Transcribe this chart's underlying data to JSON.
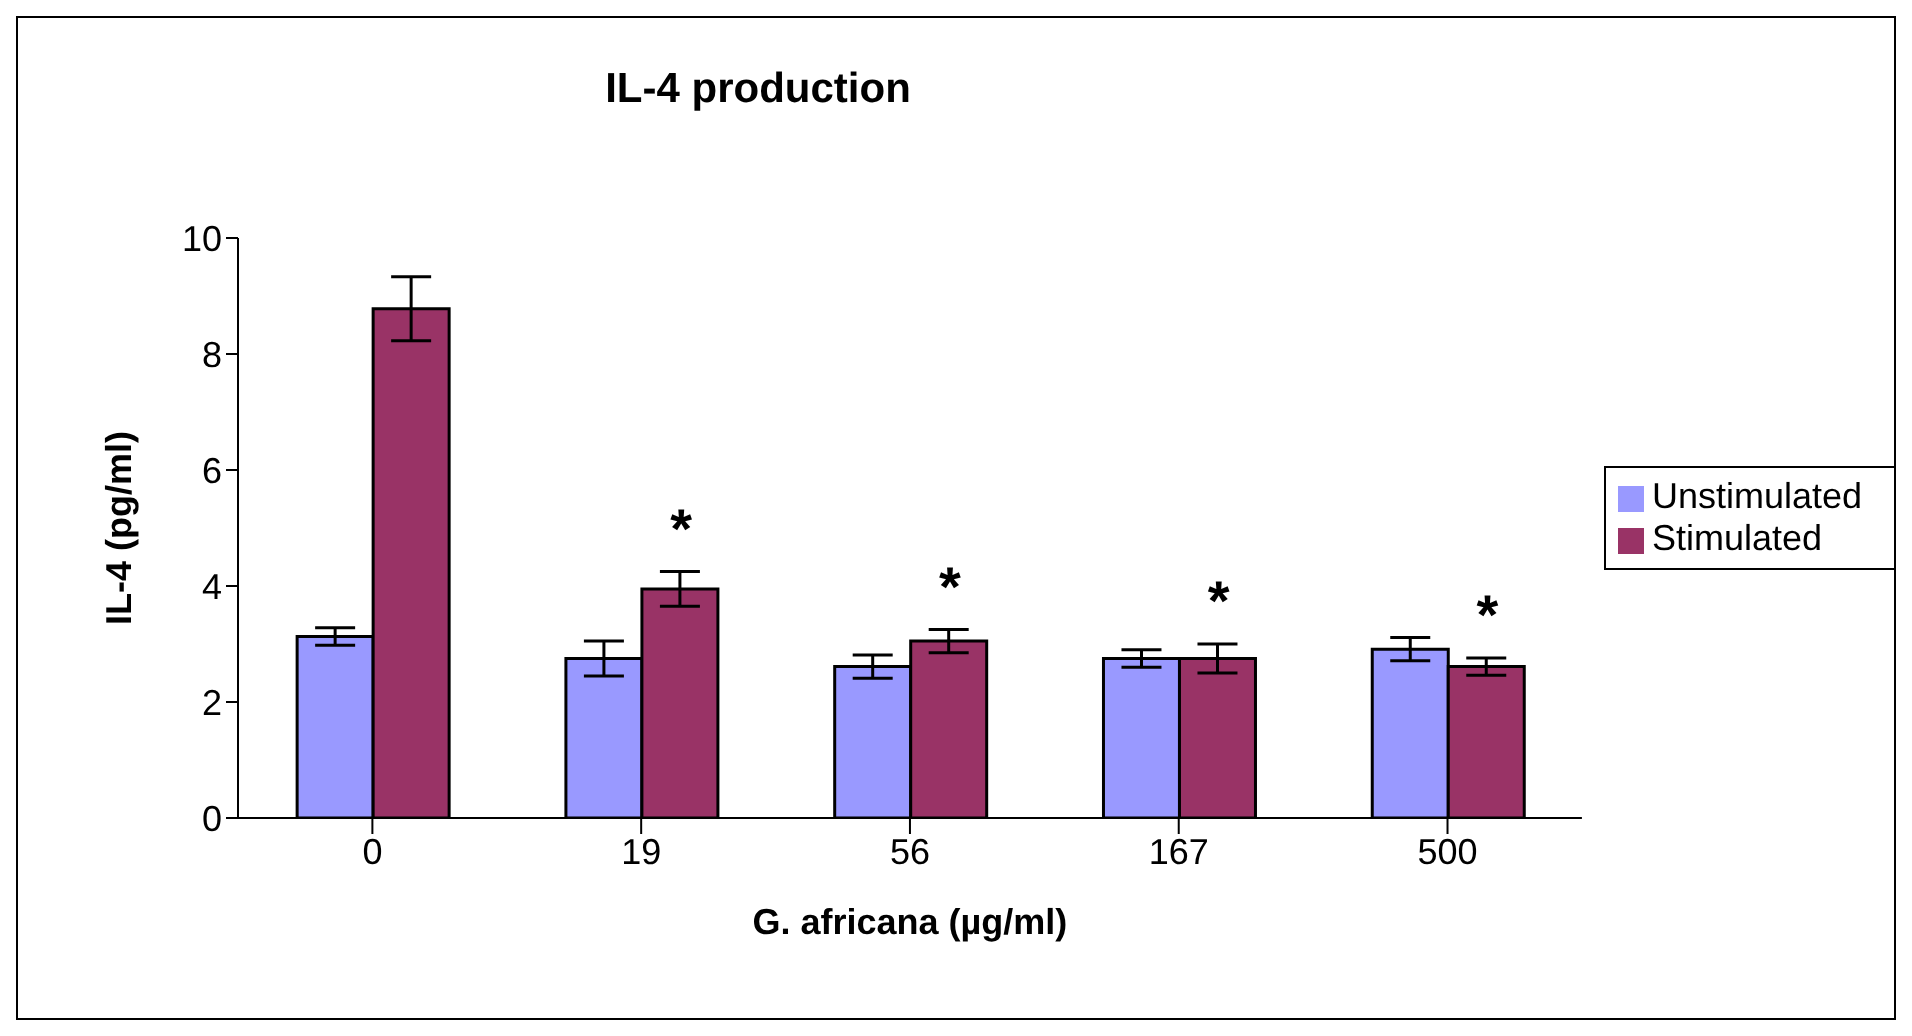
{
  "chart_data": {
    "type": "bar",
    "title": "IL-4 production",
    "xlabel": "G. africana (µg/ml)",
    "ylabel": "IL-4 (pg/ml)",
    "categories": [
      "0",
      "19",
      "56",
      "167",
      "500"
    ],
    "series": [
      {
        "name": "Unstimulated",
        "color": "#9999ff",
        "values": [
          3.13,
          2.75,
          2.61,
          2.75,
          2.91
        ],
        "errors": [
          0.15,
          0.3,
          0.2,
          0.15,
          0.2
        ]
      },
      {
        "name": "Stimulated",
        "color": "#993366",
        "values": [
          8.78,
          3.95,
          3.05,
          2.75,
          2.61
        ],
        "errors": [
          0.55,
          0.3,
          0.2,
          0.25,
          0.15
        ]
      }
    ],
    "ylim": [
      0,
      10
    ],
    "yticks": [
      0,
      2,
      4,
      6,
      8,
      10
    ],
    "grid": false,
    "legend": "right",
    "annotations": [
      "*",
      "*",
      "*",
      "*"
    ]
  }
}
